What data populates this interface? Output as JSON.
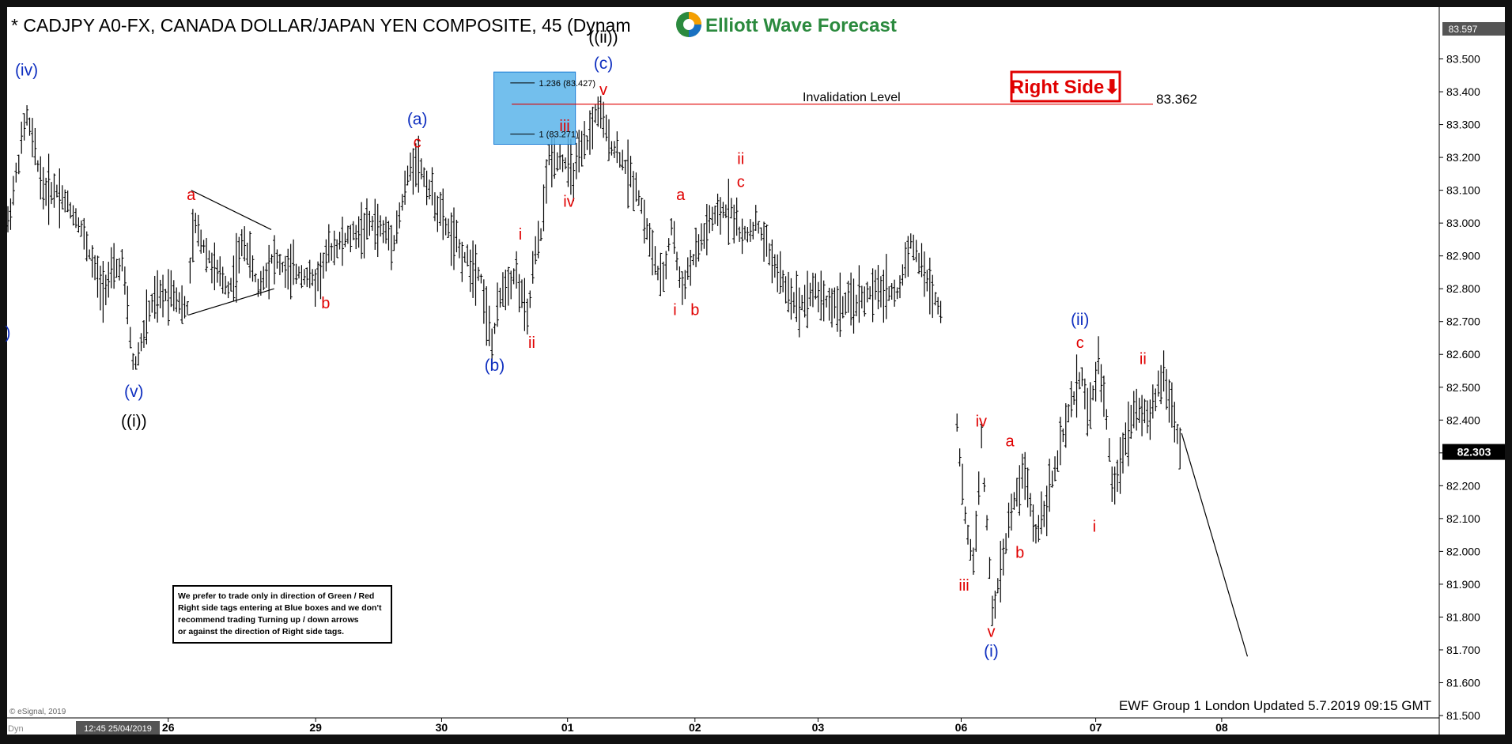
{
  "header": {
    "title": "* CADJPY A0-FX, CANADA DOLLAR/JAPAN YEN COMPOSITE, 45 (Dynam",
    "brand": "Elliott Wave Forecast"
  },
  "right_side_tag": "Right Side⬇",
  "invalidation": {
    "label": "Invalidation Level",
    "value_text": "83.362",
    "price": 83.362
  },
  "fib_box": {
    "upper_label": "1.236 (83.427)",
    "lower_label": "1 (83.271)",
    "upper": 83.427,
    "lower": 83.271
  },
  "last_price_tag": "82.303",
  "top_price_tag": "83.597",
  "note": {
    "lines": [
      "We prefer to trade only in direction of Green / Red",
      "Right side tags entering at Blue boxes and we don't",
      "recommend trading Turning up / down arrows",
      "or against the direction of Right side tags."
    ]
  },
  "footer": {
    "updated": "EWF Group 1 London Updated 5.7.2019 09:15 GMT",
    "copyright": "© eSignal, 2019",
    "start_stamp": "12:45 25/04/2019",
    "dyn": "Dyn"
  },
  "colors": {
    "background": "#ffffff",
    "bars": "#000000",
    "wave_red": "#e00000",
    "wave_blue": "#1030c0",
    "box_fill": "#5ab4ea",
    "frame": "#111111"
  },
  "chart_data": {
    "type": "ohlc",
    "symbol": "CADJPY",
    "ylim": [
      81.5,
      83.6
    ],
    "y_ticks": [
      "83.500",
      "83.400",
      "83.300",
      "83.200",
      "83.100",
      "83.000",
      "82.900",
      "82.800",
      "82.700",
      "82.600",
      "82.500",
      "82.400",
      "82.300",
      "82.200",
      "82.100",
      "82.000",
      "81.900",
      "81.800",
      "81.700",
      "81.600",
      "81.500"
    ],
    "x_ticks": [
      {
        "label": "26",
        "t": 0.112
      },
      {
        "label": "29",
        "t": 0.215
      },
      {
        "label": "30",
        "t": 0.303
      },
      {
        "label": "01",
        "t": 0.391
      },
      {
        "label": "02",
        "t": 0.48
      },
      {
        "label": "03",
        "t": 0.566
      },
      {
        "label": "06",
        "t": 0.666
      },
      {
        "label": "07",
        "t": 0.76
      },
      {
        "label": "08",
        "t": 0.848
      }
    ],
    "path": [
      [
        0.0,
        83.0
      ],
      [
        0.013,
        83.33
      ],
      [
        0.025,
        83.1
      ],
      [
        0.035,
        83.1
      ],
      [
        0.05,
        83.0
      ],
      [
        0.065,
        82.8
      ],
      [
        0.08,
        82.88
      ],
      [
        0.088,
        82.55
      ],
      [
        0.1,
        82.75
      ],
      [
        0.115,
        82.8
      ],
      [
        0.125,
        82.72
      ],
      [
        0.13,
        83.0
      ],
      [
        0.145,
        82.85
      ],
      [
        0.155,
        82.8
      ],
      [
        0.165,
        82.95
      ],
      [
        0.175,
        82.8
      ],
      [
        0.185,
        82.9
      ],
      [
        0.195,
        82.85
      ],
      [
        0.205,
        82.85
      ],
      [
        0.215,
        82.82
      ],
      [
        0.225,
        82.92
      ],
      [
        0.24,
        82.96
      ],
      [
        0.255,
        83.0
      ],
      [
        0.27,
        82.95
      ],
      [
        0.28,
        83.15
      ],
      [
        0.285,
        83.2
      ],
      [
        0.295,
        83.1
      ],
      [
        0.305,
        83.0
      ],
      [
        0.318,
        82.9
      ],
      [
        0.33,
        82.85
      ],
      [
        0.338,
        82.62
      ],
      [
        0.345,
        82.8
      ],
      [
        0.355,
        82.85
      ],
      [
        0.363,
        82.7
      ],
      [
        0.368,
        82.9
      ],
      [
        0.372,
        82.95
      ],
      [
        0.378,
        83.2
      ],
      [
        0.386,
        83.2
      ],
      [
        0.395,
        83.15
      ],
      [
        0.405,
        83.25
      ],
      [
        0.412,
        83.35
      ],
      [
        0.42,
        83.25
      ],
      [
        0.428,
        83.2
      ],
      [
        0.44,
        83.1
      ],
      [
        0.448,
        82.95
      ],
      [
        0.457,
        82.8
      ],
      [
        0.464,
        83.0
      ],
      [
        0.47,
        82.8
      ],
      [
        0.48,
        82.9
      ],
      [
        0.49,
        83.0
      ],
      [
        0.505,
        83.05
      ],
      [
        0.513,
        82.95
      ],
      [
        0.523,
        83.0
      ],
      [
        0.533,
        82.9
      ],
      [
        0.543,
        82.8
      ],
      [
        0.553,
        82.75
      ],
      [
        0.563,
        82.8
      ],
      [
        0.575,
        82.75
      ],
      [
        0.588,
        82.75
      ],
      [
        0.6,
        82.78
      ],
      [
        0.612,
        82.8
      ],
      [
        0.622,
        82.78
      ],
      [
        0.63,
        82.95
      ],
      [
        0.64,
        82.85
      ],
      [
        0.65,
        82.75
      ],
      [
        0.66,
        82.7
      ],
      [
        0.663,
        82.4
      ],
      [
        0.668,
        82.12
      ],
      [
        0.675,
        81.95
      ],
      [
        0.68,
        82.35
      ],
      [
        0.688,
        81.8
      ],
      [
        0.696,
        82.0
      ],
      [
        0.7,
        82.1
      ],
      [
        0.71,
        82.25
      ],
      [
        0.718,
        82.05
      ],
      [
        0.725,
        82.15
      ],
      [
        0.732,
        82.25
      ],
      [
        0.74,
        82.4
      ],
      [
        0.75,
        82.55
      ],
      [
        0.755,
        82.4
      ],
      [
        0.762,
        82.58
      ],
      [
        0.768,
        82.4
      ],
      [
        0.772,
        82.15
      ],
      [
        0.778,
        82.3
      ],
      [
        0.788,
        82.45
      ],
      [
        0.798,
        82.4
      ],
      [
        0.807,
        82.55
      ],
      [
        0.815,
        82.4
      ],
      [
        0.82,
        82.3
      ]
    ],
    "labels": [
      {
        "text": "(iv)",
        "color": "blue",
        "t": 0.013,
        "p": 83.45
      },
      {
        "text": ")",
        "color": "blue",
        "t": 0.0,
        "p": 82.65
      },
      {
        "text": "(v)",
        "color": "blue",
        "t": 0.088,
        "p": 82.47
      },
      {
        "text": "((i))",
        "color": "black",
        "t": 0.088,
        "p": 82.38
      },
      {
        "text": "a",
        "color": "red",
        "t": 0.128,
        "p": 83.07
      },
      {
        "text": "b",
        "color": "red",
        "t": 0.222,
        "p": 82.74
      },
      {
        "text": "(a)",
        "color": "blue",
        "t": 0.286,
        "p": 83.3
      },
      {
        "text": "c",
        "color": "red",
        "t": 0.286,
        "p": 83.23
      },
      {
        "text": "(b)",
        "color": "blue",
        "t": 0.34,
        "p": 82.55
      },
      {
        "text": "i",
        "color": "red",
        "t": 0.358,
        "p": 82.95
      },
      {
        "text": "ii",
        "color": "red",
        "t": 0.366,
        "p": 82.62
      },
      {
        "text": "iii",
        "color": "red",
        "t": 0.389,
        "p": 83.28
      },
      {
        "text": "iv",
        "color": "red",
        "t": 0.392,
        "p": 83.05
      },
      {
        "text": "((ii))",
        "color": "black",
        "t": 0.416,
        "p": 83.55
      },
      {
        "text": "(c)",
        "color": "blue",
        "t": 0.416,
        "p": 83.47
      },
      {
        "text": "v",
        "color": "red",
        "t": 0.416,
        "p": 83.39
      },
      {
        "text": "a",
        "color": "red",
        "t": 0.47,
        "p": 83.07
      },
      {
        "text": "i",
        "color": "red",
        "t": 0.466,
        "p": 82.72
      },
      {
        "text": "b",
        "color": "red",
        "t": 0.48,
        "p": 82.72
      },
      {
        "text": "ii",
        "color": "red",
        "t": 0.512,
        "p": 83.18
      },
      {
        "text": "c",
        "color": "red",
        "t": 0.512,
        "p": 83.11
      },
      {
        "text": "iv",
        "color": "red",
        "t": 0.68,
        "p": 82.38
      },
      {
        "text": "a",
        "color": "red",
        "t": 0.7,
        "p": 82.32
      },
      {
        "text": "iii",
        "color": "red",
        "t": 0.668,
        "p": 81.88
      },
      {
        "text": "b",
        "color": "red",
        "t": 0.707,
        "p": 81.98
      },
      {
        "text": "v",
        "color": "red",
        "t": 0.687,
        "p": 81.74
      },
      {
        "text": "(i)",
        "color": "blue",
        "t": 0.687,
        "p": 81.68
      },
      {
        "text": "(ii)",
        "color": "blue",
        "t": 0.749,
        "p": 82.69
      },
      {
        "text": "c",
        "color": "red",
        "t": 0.749,
        "p": 82.62
      },
      {
        "text": "ii",
        "color": "red",
        "t": 0.793,
        "p": 82.57
      },
      {
        "text": "i",
        "color": "red",
        "t": 0.759,
        "p": 82.06
      }
    ]
  }
}
